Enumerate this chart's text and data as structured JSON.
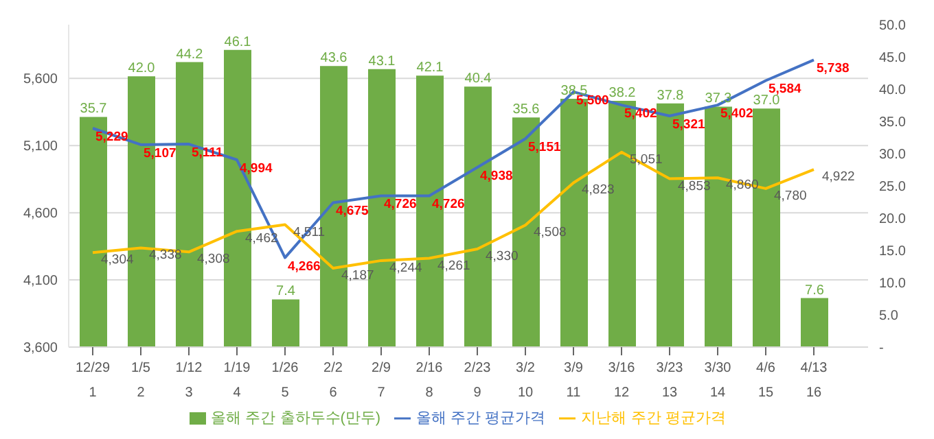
{
  "chart_data": {
    "type": "bar",
    "categories": [
      "12/29\n1",
      "1/5\n2",
      "1/12\n3",
      "1/19\n4",
      "1/26\n5",
      "2/2\n6",
      "2/9\n7",
      "2/16\n8",
      "2/23\n9",
      "3/2\n10",
      "3/9\n11",
      "3/16\n12",
      "3/23\n13",
      "3/30\n14",
      "4/6\n15",
      "4/13\n16"
    ],
    "series": [
      {
        "name": "올해 주간 출하두수(만두)",
        "axis": "y2",
        "color": "#70ad47",
        "values": [
          35.7,
          42.0,
          44.2,
          46.1,
          7.4,
          43.6,
          43.1,
          42.1,
          40.4,
          35.6,
          38.5,
          38.2,
          37.8,
          37.3,
          37.0,
          7.6
        ],
        "value_labels": [
          "35.7",
          "42.0",
          "44.2",
          "46.1",
          "7.4",
          "43.6",
          "43.1",
          "42.1",
          "40.4",
          "35.6",
          "38.5",
          "38.2",
          "37.8",
          "37.3",
          "37.0",
          "7.6"
        ]
      },
      {
        "name": "올해 주간 평균가격",
        "type": "line",
        "color": "#4472c4",
        "values": [
          5229,
          5107,
          5111,
          4994,
          4266,
          4675,
          4726,
          4726,
          4938,
          5151,
          5500,
          5402,
          5321,
          5402,
          5584,
          5738
        ],
        "value_labels": [
          "5,229",
          "5,107",
          "5,111",
          "4,994",
          "4,266",
          "4,675",
          "4,726",
          "4,726",
          "4,938",
          "5,151",
          "5,500",
          "5,402",
          "5,321",
          "5,402",
          "5,584",
          "5,738"
        ]
      },
      {
        "name": "지난해 주간 평균가격",
        "type": "line",
        "color": "#ffc000",
        "values": [
          4304,
          4338,
          4308,
          4462,
          4511,
          4187,
          4244,
          4261,
          4330,
          4508,
          4823,
          5051,
          4853,
          4860,
          4780,
          4922
        ],
        "value_labels": [
          "4,304",
          "4,338",
          "4,308",
          "4,462",
          "4,511",
          "4,187",
          "4,244",
          "4,261",
          "4,330",
          "4,508",
          "4,823",
          "5,051",
          "4,853",
          "4,860",
          "4,780",
          "4,922"
        ]
      }
    ],
    "ylim": [
      3600,
      6000
    ],
    "yticks": [
      {
        "value": 3600,
        "label": "3,600"
      },
      {
        "value": 4100,
        "label": "4,100"
      },
      {
        "value": 4600,
        "label": "4,600"
      },
      {
        "value": 5100,
        "label": "5,100"
      },
      {
        "value": 5600,
        "label": "5,600"
      }
    ],
    "y2lim": [
      0,
      50
    ],
    "y2ticks": [
      {
        "value": 0,
        "label": "-"
      },
      {
        "value": 5,
        "label": "5.0"
      },
      {
        "value": 10,
        "label": "10.0"
      },
      {
        "value": 15,
        "label": "15.0"
      },
      {
        "value": 20,
        "label": "20.0"
      },
      {
        "value": 25,
        "label": "25.0"
      },
      {
        "value": 30,
        "label": "30.0"
      },
      {
        "value": 35,
        "label": "35.0"
      },
      {
        "value": 40,
        "label": "40.0"
      },
      {
        "value": 45,
        "label": "45.0"
      },
      {
        "value": 50,
        "label": "50.0"
      }
    ],
    "grid": "y",
    "legend": "bottom",
    "marker": "none"
  }
}
